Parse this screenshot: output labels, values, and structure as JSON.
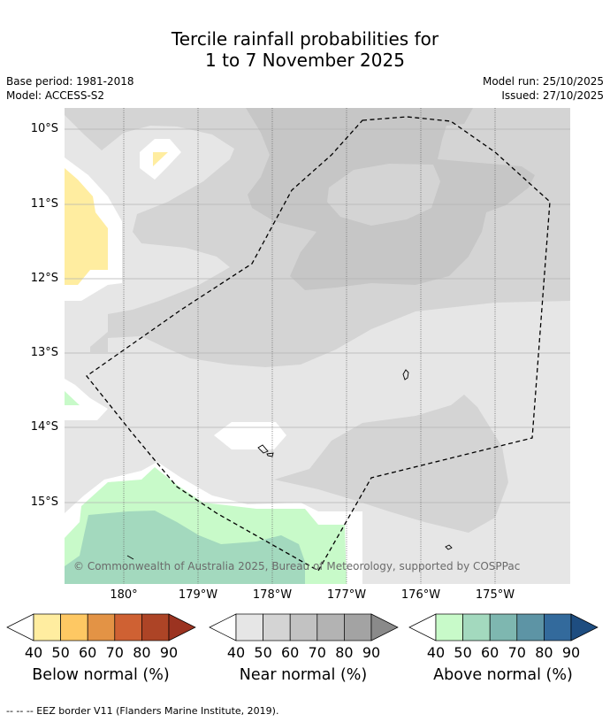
{
  "title": {
    "line1": "Tercile rainfall probabilities for",
    "line2": "1 to 7 November 2025"
  },
  "meta": {
    "base_period": "Base period: 1981-2018",
    "model": "Model: ACCESS-S2",
    "model_run": "Model run: 25/10/2025",
    "issued": "Issued: 27/10/2025"
  },
  "map": {
    "lat_labels": [
      "10°S",
      "11°S",
      "12°S",
      "13°S",
      "14°S",
      "15°S"
    ],
    "lon_labels": [
      "180°",
      "179°W",
      "178°W",
      "177°W",
      "176°W",
      "175°W"
    ],
    "copyright": "© Commonwealth of Australia 2025, Bureau of Meteorology, supported by COSPPac"
  },
  "colorbars": {
    "ticks": [
      "40",
      "50",
      "60",
      "70",
      "80",
      "90"
    ],
    "below": {
      "label": "Below normal (%)",
      "colors": [
        "#ffeda0",
        "#fec863",
        "#e39345",
        "#cf6133",
        "#ad4426",
        "#9b3320"
      ]
    },
    "near": {
      "label": "Near normal (%)",
      "colors": [
        "#e6e6e6",
        "#d4d4d4",
        "#c2c2c2",
        "#b3b3b3",
        "#a3a3a3",
        "#8a8a8a"
      ]
    },
    "above": {
      "label": "Above normal (%)",
      "colors": [
        "#c8fac9",
        "#a3d9be",
        "#7eb7b0",
        "#5d94a5",
        "#336a9c",
        "#1e4d80"
      ]
    }
  },
  "footnote": "--  --  -- EEZ border V11 (Flanders Marine Institute, 2019)."
}
